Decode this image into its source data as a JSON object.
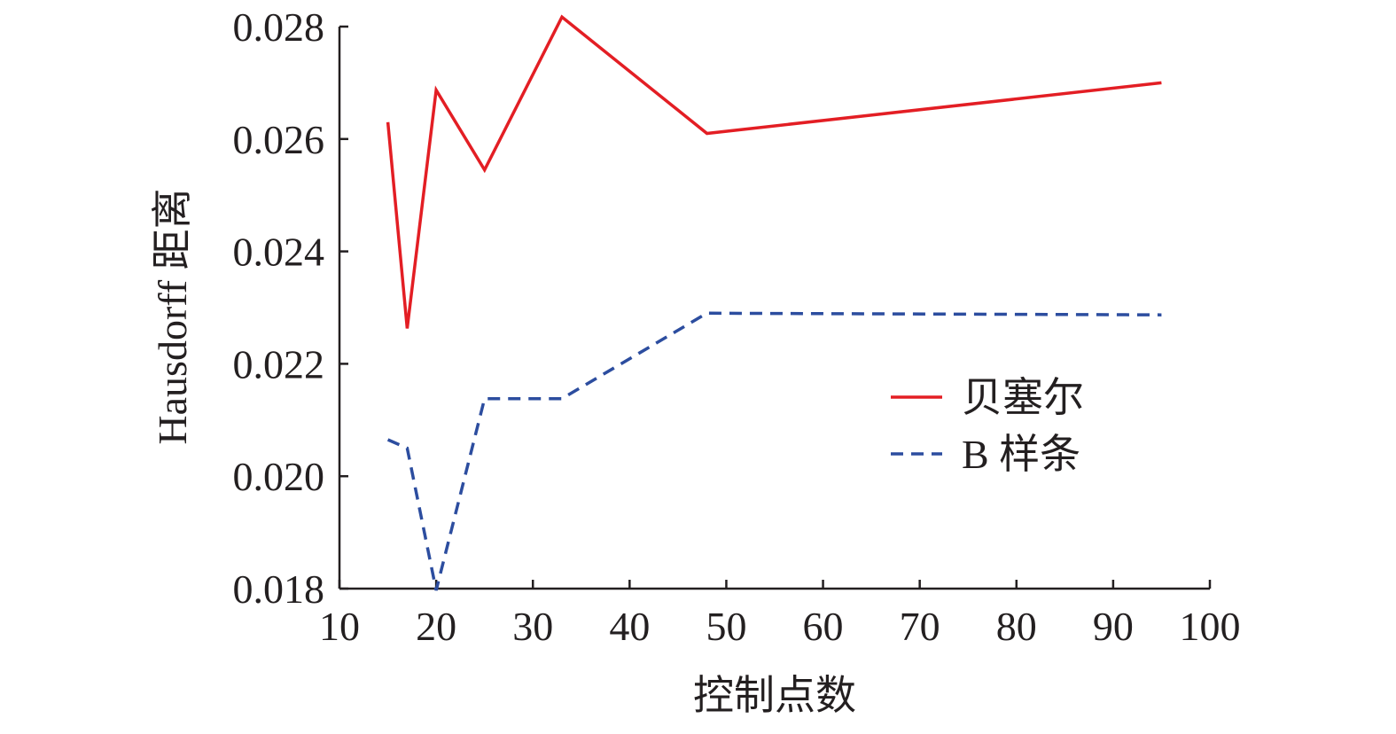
{
  "chart_data": {
    "type": "line",
    "xlabel": "控制点数",
    "ylabel": "Hausdorff 距离",
    "xlim": [
      10,
      100
    ],
    "ylim": [
      0.018,
      0.028
    ],
    "xticks": [
      10,
      20,
      30,
      40,
      50,
      60,
      70,
      80,
      90,
      100
    ],
    "xtick_labels": [
      "10",
      "20",
      "30",
      "40",
      "50",
      "60",
      "70",
      "80",
      "90",
      "100"
    ],
    "yticks": [
      0.018,
      0.02,
      0.022,
      0.024,
      0.026,
      0.028
    ],
    "ytick_labels": [
      "0.018",
      "0.020",
      "0.022",
      "0.024",
      "0.026",
      "0.028"
    ],
    "grid": false,
    "legend_position": "center-right",
    "series": [
      {
        "name": "贝塞尔",
        "color": "#e31e24",
        "style": "solid",
        "x": [
          15,
          17,
          20,
          25,
          33,
          48,
          95
        ],
        "y": [
          0.0263,
          0.02263,
          0.02687,
          0.02545,
          0.02817,
          0.0261,
          0.027
        ]
      },
      {
        "name": "B 样条",
        "color": "#2c4d9f",
        "style": "dashed",
        "x": [
          15,
          17,
          20,
          25,
          33,
          48,
          95
        ],
        "y": [
          0.02065,
          0.0205,
          0.01797,
          0.02138,
          0.02138,
          0.0229,
          0.02287
        ]
      }
    ]
  }
}
